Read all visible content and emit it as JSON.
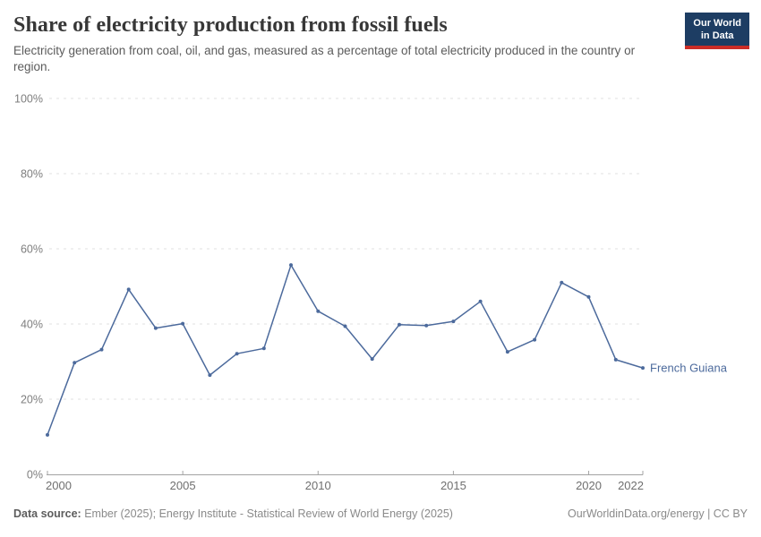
{
  "header": {
    "title": "Share of electricity production from fossil fuels",
    "subtitle": "Electricity generation from coal, oil, and gas, measured as a percentage of total electricity produced in the country or region.",
    "logo": {
      "line1": "Our World",
      "line2": "in Data",
      "bg_color": "#1d3d63",
      "accent_color": "#cb2d27"
    }
  },
  "chart_data": {
    "type": "line",
    "title": "Share of electricity production from fossil fuels",
    "x": [
      2000,
      2001,
      2002,
      2003,
      2004,
      2005,
      2006,
      2007,
      2008,
      2009,
      2010,
      2011,
      2012,
      2013,
      2014,
      2015,
      2016,
      2017,
      2018,
      2019,
      2020,
      2021,
      2022
    ],
    "series": [
      {
        "name": "French Guiana",
        "color": "#4C6A9C",
        "values": [
          10.5,
          29.7,
          33.2,
          49.2,
          38.9,
          40.1,
          26.4,
          32.1,
          33.5,
          55.7,
          43.4,
          39.4,
          30.7,
          39.8,
          39.6,
          40.7,
          46.0,
          32.6,
          35.8,
          51.0,
          47.2,
          30.5,
          28.3
        ]
      }
    ],
    "xlabel": "",
    "ylabel": "",
    "xlim": [
      2000,
      2022
    ],
    "ylim": [
      0,
      100
    ],
    "yticks": [
      0,
      20,
      40,
      60,
      80,
      100
    ],
    "ytick_suffix": "%",
    "xticks": [
      2000,
      2005,
      2010,
      2015,
      2020,
      2022
    ],
    "grid": "horizontal-dashed",
    "legend_position": "end-of-line",
    "grid_color": "#e2e2e2",
    "axis_color": "#a3a3a3"
  },
  "footer": {
    "source_label": "Data source:",
    "source_text": " Ember (2025); Energy Institute - Statistical Review of World Energy (2025)",
    "right_text": "OurWorldinData.org/energy | CC BY"
  }
}
